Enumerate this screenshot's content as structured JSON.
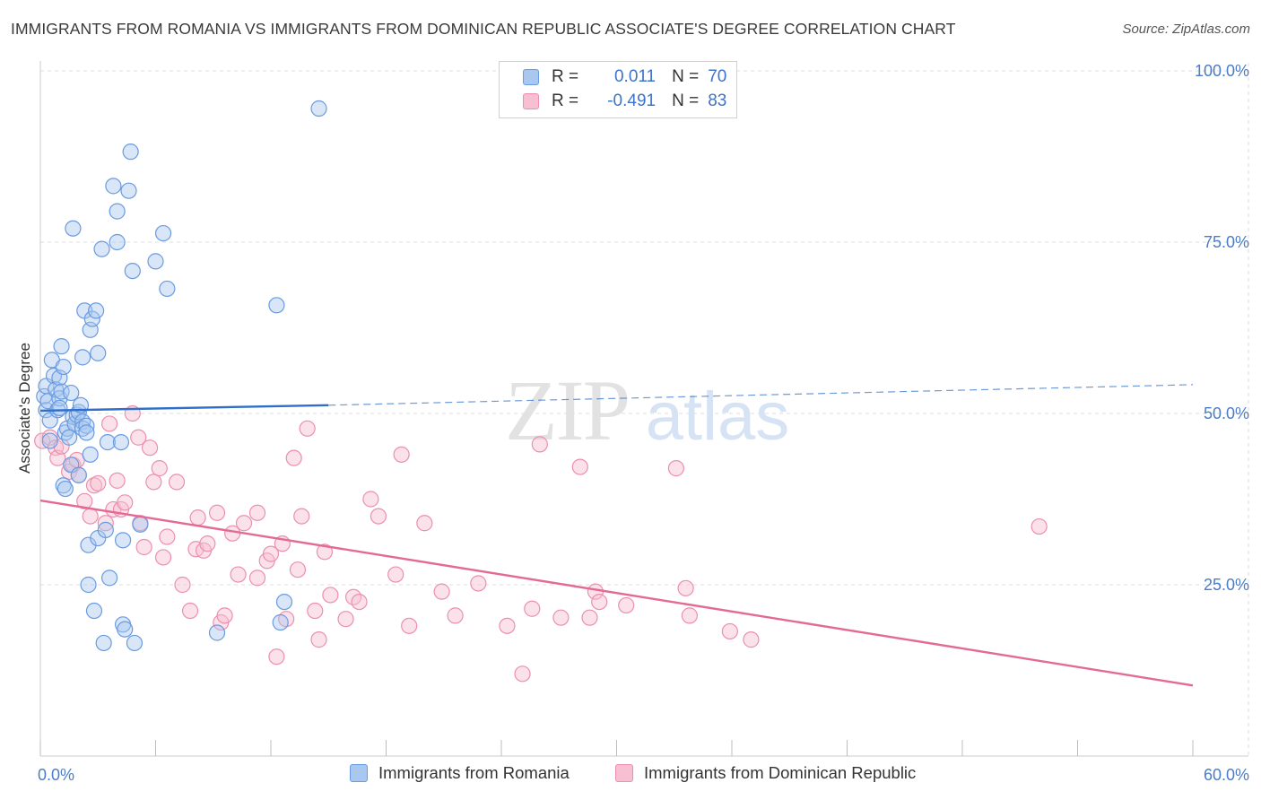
{
  "header": {
    "title": "IMMIGRANTS FROM ROMANIA VS IMMIGRANTS FROM DOMINICAN REPUBLIC ASSOCIATE'S DEGREE CORRELATION CHART",
    "source": "Source: ZipAtlas.com"
  },
  "watermark": {
    "zip": "ZIP",
    "atlas": "atlas"
  },
  "legend": {
    "rows": [
      {
        "r_label": "R =",
        "r_value": "0.011",
        "n_label": "N =",
        "n_value": "70"
      },
      {
        "r_label": "R =",
        "r_value": "-0.491",
        "n_label": "N =",
        "n_value": "83"
      }
    ]
  },
  "bottom_legend": {
    "items": [
      "Immigrants from Romania",
      "Immigrants from Dominican Republic"
    ]
  },
  "colors": {
    "romania_fill": "#a9c8f0",
    "romania_stroke": "#6a9be0",
    "romania_line": "#2f6fc9",
    "dominican_fill": "#f7bfd1",
    "dominican_stroke": "#ec8fae",
    "dominican_line": "#e46a96",
    "tick_text": "#4a7cc7",
    "grid": "#dcdcdc"
  },
  "chart_data": {
    "type": "scatter",
    "title": "IMMIGRANTS FROM ROMANIA VS IMMIGRANTS FROM DOMINICAN REPUBLIC ASSOCIATE'S DEGREE CORRELATION CHART",
    "xlabel": "",
    "ylabel": "Associate's Degree",
    "xlim": [
      0,
      60
    ],
    "ylim": [
      0,
      100
    ],
    "x_tick_labels": [
      {
        "value": 0,
        "label": "0.0%"
      },
      {
        "value": 60,
        "label": "60.0%"
      }
    ],
    "y_tick_labels": [
      {
        "value": 25,
        "label": "25.0%"
      },
      {
        "value": 50,
        "label": "50.0%"
      },
      {
        "value": 75,
        "label": "75.0%"
      },
      {
        "value": 100,
        "label": "100.0%"
      }
    ],
    "grid": true,
    "series": [
      {
        "name": "Immigrants from Romania",
        "r": 0.011,
        "n": 70,
        "trend": {
          "x": [
            0,
            15
          ],
          "y": [
            50.4,
            51.2
          ],
          "extended_to": [
            60,
            54.2
          ]
        },
        "points": [
          [
            0.2,
            52.5
          ],
          [
            0.3,
            50.5
          ],
          [
            0.3,
            54.0
          ],
          [
            0.4,
            51.8
          ],
          [
            0.5,
            49.0
          ],
          [
            0.5,
            46.0
          ],
          [
            0.6,
            57.8
          ],
          [
            0.7,
            55.5
          ],
          [
            0.8,
            53.5
          ],
          [
            0.9,
            50.5
          ],
          [
            1.0,
            52.2
          ],
          [
            1.0,
            50.8
          ],
          [
            1.0,
            55.2
          ],
          [
            1.1,
            59.8
          ],
          [
            1.1,
            53.2
          ],
          [
            1.2,
            39.5
          ],
          [
            1.2,
            56.8
          ],
          [
            1.3,
            39.0
          ],
          [
            1.3,
            47.2
          ],
          [
            1.4,
            47.8
          ],
          [
            1.5,
            46.5
          ],
          [
            1.6,
            42.5
          ],
          [
            1.6,
            53.0
          ],
          [
            1.7,
            77.0
          ],
          [
            1.7,
            49.5
          ],
          [
            1.8,
            48.5
          ],
          [
            1.9,
            49.8
          ],
          [
            2.0,
            50.2
          ],
          [
            2.0,
            41.0
          ],
          [
            2.1,
            51.2
          ],
          [
            2.2,
            48.8
          ],
          [
            2.2,
            47.8
          ],
          [
            2.2,
            58.2
          ],
          [
            2.3,
            65.0
          ],
          [
            2.4,
            48.2
          ],
          [
            2.4,
            47.2
          ],
          [
            2.5,
            25.0
          ],
          [
            2.5,
            30.8
          ],
          [
            2.6,
            62.2
          ],
          [
            2.6,
            44.0
          ],
          [
            2.7,
            63.8
          ],
          [
            2.8,
            21.2
          ],
          [
            2.9,
            65.0
          ],
          [
            3.0,
            31.8
          ],
          [
            3.0,
            58.8
          ],
          [
            3.2,
            74.0
          ],
          [
            3.3,
            16.5
          ],
          [
            3.4,
            33.0
          ],
          [
            3.5,
            45.8
          ],
          [
            3.6,
            26.0
          ],
          [
            3.8,
            83.2
          ],
          [
            4.0,
            79.5
          ],
          [
            4.0,
            75.0
          ],
          [
            4.2,
            45.8
          ],
          [
            4.3,
            31.5
          ],
          [
            4.3,
            19.2
          ],
          [
            4.4,
            18.5
          ],
          [
            4.6,
            82.5
          ],
          [
            4.7,
            88.2
          ],
          [
            4.8,
            70.8
          ],
          [
            4.9,
            16.5
          ],
          [
            5.2,
            33.8
          ],
          [
            6.0,
            72.2
          ],
          [
            6.4,
            76.3
          ],
          [
            6.6,
            68.2
          ],
          [
            9.2,
            18.0
          ],
          [
            12.3,
            65.8
          ],
          [
            12.5,
            19.5
          ],
          [
            12.7,
            22.5
          ],
          [
            14.5,
            94.5
          ]
        ]
      },
      {
        "name": "Immigrants from Dominican Republic",
        "r": -0.491,
        "n": 83,
        "trend": {
          "x": [
            0,
            60
          ],
          "y": [
            37.3,
            10.3
          ]
        },
        "points": [
          [
            0.1,
            46.0
          ],
          [
            0.5,
            46.5
          ],
          [
            0.8,
            45.0
          ],
          [
            0.9,
            43.5
          ],
          [
            1.1,
            45.2
          ],
          [
            1.5,
            41.5
          ],
          [
            1.7,
            42.5
          ],
          [
            1.9,
            43.2
          ],
          [
            2.0,
            41.0
          ],
          [
            2.3,
            37.2
          ],
          [
            2.6,
            35.0
          ],
          [
            2.8,
            39.5
          ],
          [
            3.0,
            39.8
          ],
          [
            3.4,
            34.0
          ],
          [
            3.6,
            48.5
          ],
          [
            3.8,
            36.0
          ],
          [
            4.0,
            40.2
          ],
          [
            4.2,
            36.0
          ],
          [
            4.4,
            37.0
          ],
          [
            4.8,
            50.0
          ],
          [
            5.1,
            46.5
          ],
          [
            5.2,
            34.0
          ],
          [
            5.4,
            30.5
          ],
          [
            5.7,
            45.0
          ],
          [
            5.9,
            40.0
          ],
          [
            6.2,
            42.0
          ],
          [
            6.4,
            29.0
          ],
          [
            6.6,
            32.0
          ],
          [
            7.1,
            40.0
          ],
          [
            7.4,
            25.0
          ],
          [
            7.8,
            21.2
          ],
          [
            8.1,
            30.2
          ],
          [
            8.2,
            34.8
          ],
          [
            8.5,
            30.0
          ],
          [
            8.7,
            31.0
          ],
          [
            9.2,
            35.5
          ],
          [
            9.4,
            19.5
          ],
          [
            9.6,
            20.5
          ],
          [
            10.0,
            32.5
          ],
          [
            10.3,
            26.5
          ],
          [
            10.6,
            34.0
          ],
          [
            11.3,
            35.5
          ],
          [
            11.3,
            26.0
          ],
          [
            11.8,
            28.5
          ],
          [
            12.0,
            29.5
          ],
          [
            12.3,
            14.5
          ],
          [
            12.6,
            31.0
          ],
          [
            12.8,
            20.0
          ],
          [
            13.2,
            43.5
          ],
          [
            13.4,
            27.2
          ],
          [
            13.6,
            35.0
          ],
          [
            13.9,
            47.8
          ],
          [
            14.3,
            21.2
          ],
          [
            14.5,
            17.0
          ],
          [
            14.8,
            29.8
          ],
          [
            15.1,
            23.5
          ],
          [
            15.9,
            20.0
          ],
          [
            16.3,
            23.2
          ],
          [
            16.6,
            22.5
          ],
          [
            17.2,
            37.5
          ],
          [
            17.6,
            35.0
          ],
          [
            18.5,
            26.5
          ],
          [
            18.8,
            44.0
          ],
          [
            19.2,
            19.0
          ],
          [
            20.0,
            34.0
          ],
          [
            20.9,
            24.0
          ],
          [
            21.6,
            20.5
          ],
          [
            22.8,
            25.2
          ],
          [
            24.3,
            19.0
          ],
          [
            25.1,
            12.0
          ],
          [
            25.6,
            21.5
          ],
          [
            26.0,
            45.5
          ],
          [
            27.1,
            20.2
          ],
          [
            28.1,
            42.2
          ],
          [
            28.6,
            20.2
          ],
          [
            28.9,
            24.0
          ],
          [
            29.1,
            22.5
          ],
          [
            30.5,
            22.0
          ],
          [
            33.1,
            42.0
          ],
          [
            33.6,
            24.5
          ],
          [
            33.8,
            20.5
          ],
          [
            35.9,
            18.2
          ],
          [
            37.0,
            17.0
          ],
          [
            52.0,
            33.5
          ]
        ]
      }
    ]
  }
}
